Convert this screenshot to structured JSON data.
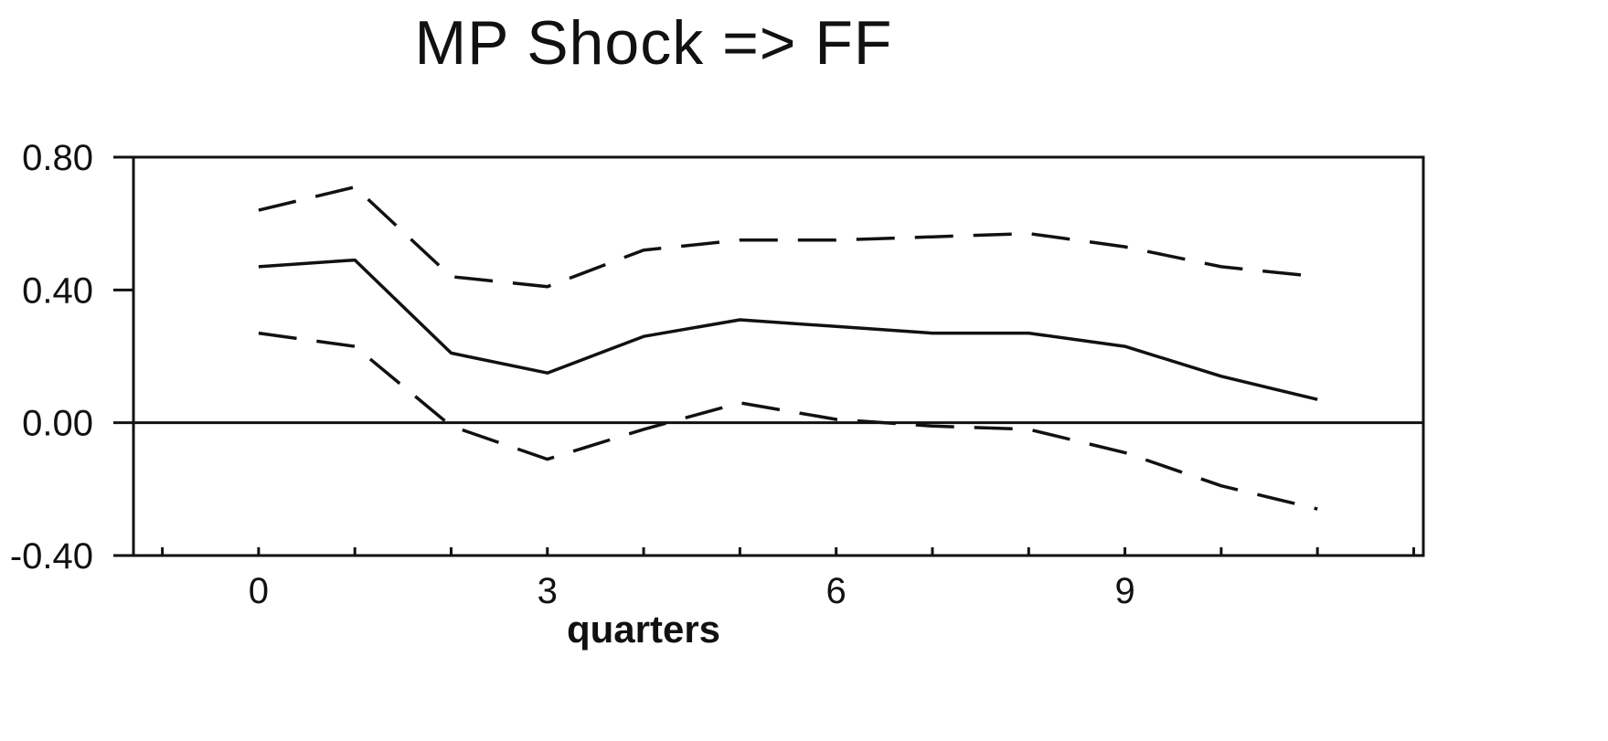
{
  "chart_data": {
    "type": "line",
    "title": "MP Shock => FF",
    "xlabel": "quarters",
    "ylabel": "",
    "x": [
      0,
      1,
      2,
      3,
      4,
      5,
      6,
      7,
      8,
      9,
      10,
      11
    ],
    "xlim": [
      -1.3,
      12.1
    ],
    "ylim": [
      -0.4,
      0.8
    ],
    "x_ticks": [
      0,
      3,
      6,
      9
    ],
    "x_tick_labels": [
      "0",
      "3",
      "6",
      "9"
    ],
    "y_ticks": [
      -0.4,
      0.0,
      0.4,
      0.8
    ],
    "y_tick_labels": [
      "-0.40",
      "0.00",
      "0.40",
      "0.80"
    ],
    "zero_line": true,
    "grid": false,
    "legend": "none",
    "series": [
      {
        "style": "solid",
        "color": "#111111",
        "values": [
          0.47,
          0.49,
          0.21,
          0.15,
          0.26,
          0.31,
          0.29,
          0.27,
          0.27,
          0.23,
          0.14,
          0.07
        ]
      },
      {
        "style": "dashed",
        "color": "#111111",
        "values": [
          0.64,
          0.71,
          0.44,
          0.41,
          0.52,
          0.55,
          0.55,
          0.56,
          0.57,
          0.53,
          0.47,
          0.44
        ]
      },
      {
        "style": "dashed",
        "color": "#111111",
        "values": [
          0.27,
          0.23,
          -0.01,
          -0.11,
          -0.02,
          0.06,
          0.01,
          -0.01,
          -0.02,
          -0.09,
          -0.19,
          -0.26
        ]
      }
    ]
  }
}
